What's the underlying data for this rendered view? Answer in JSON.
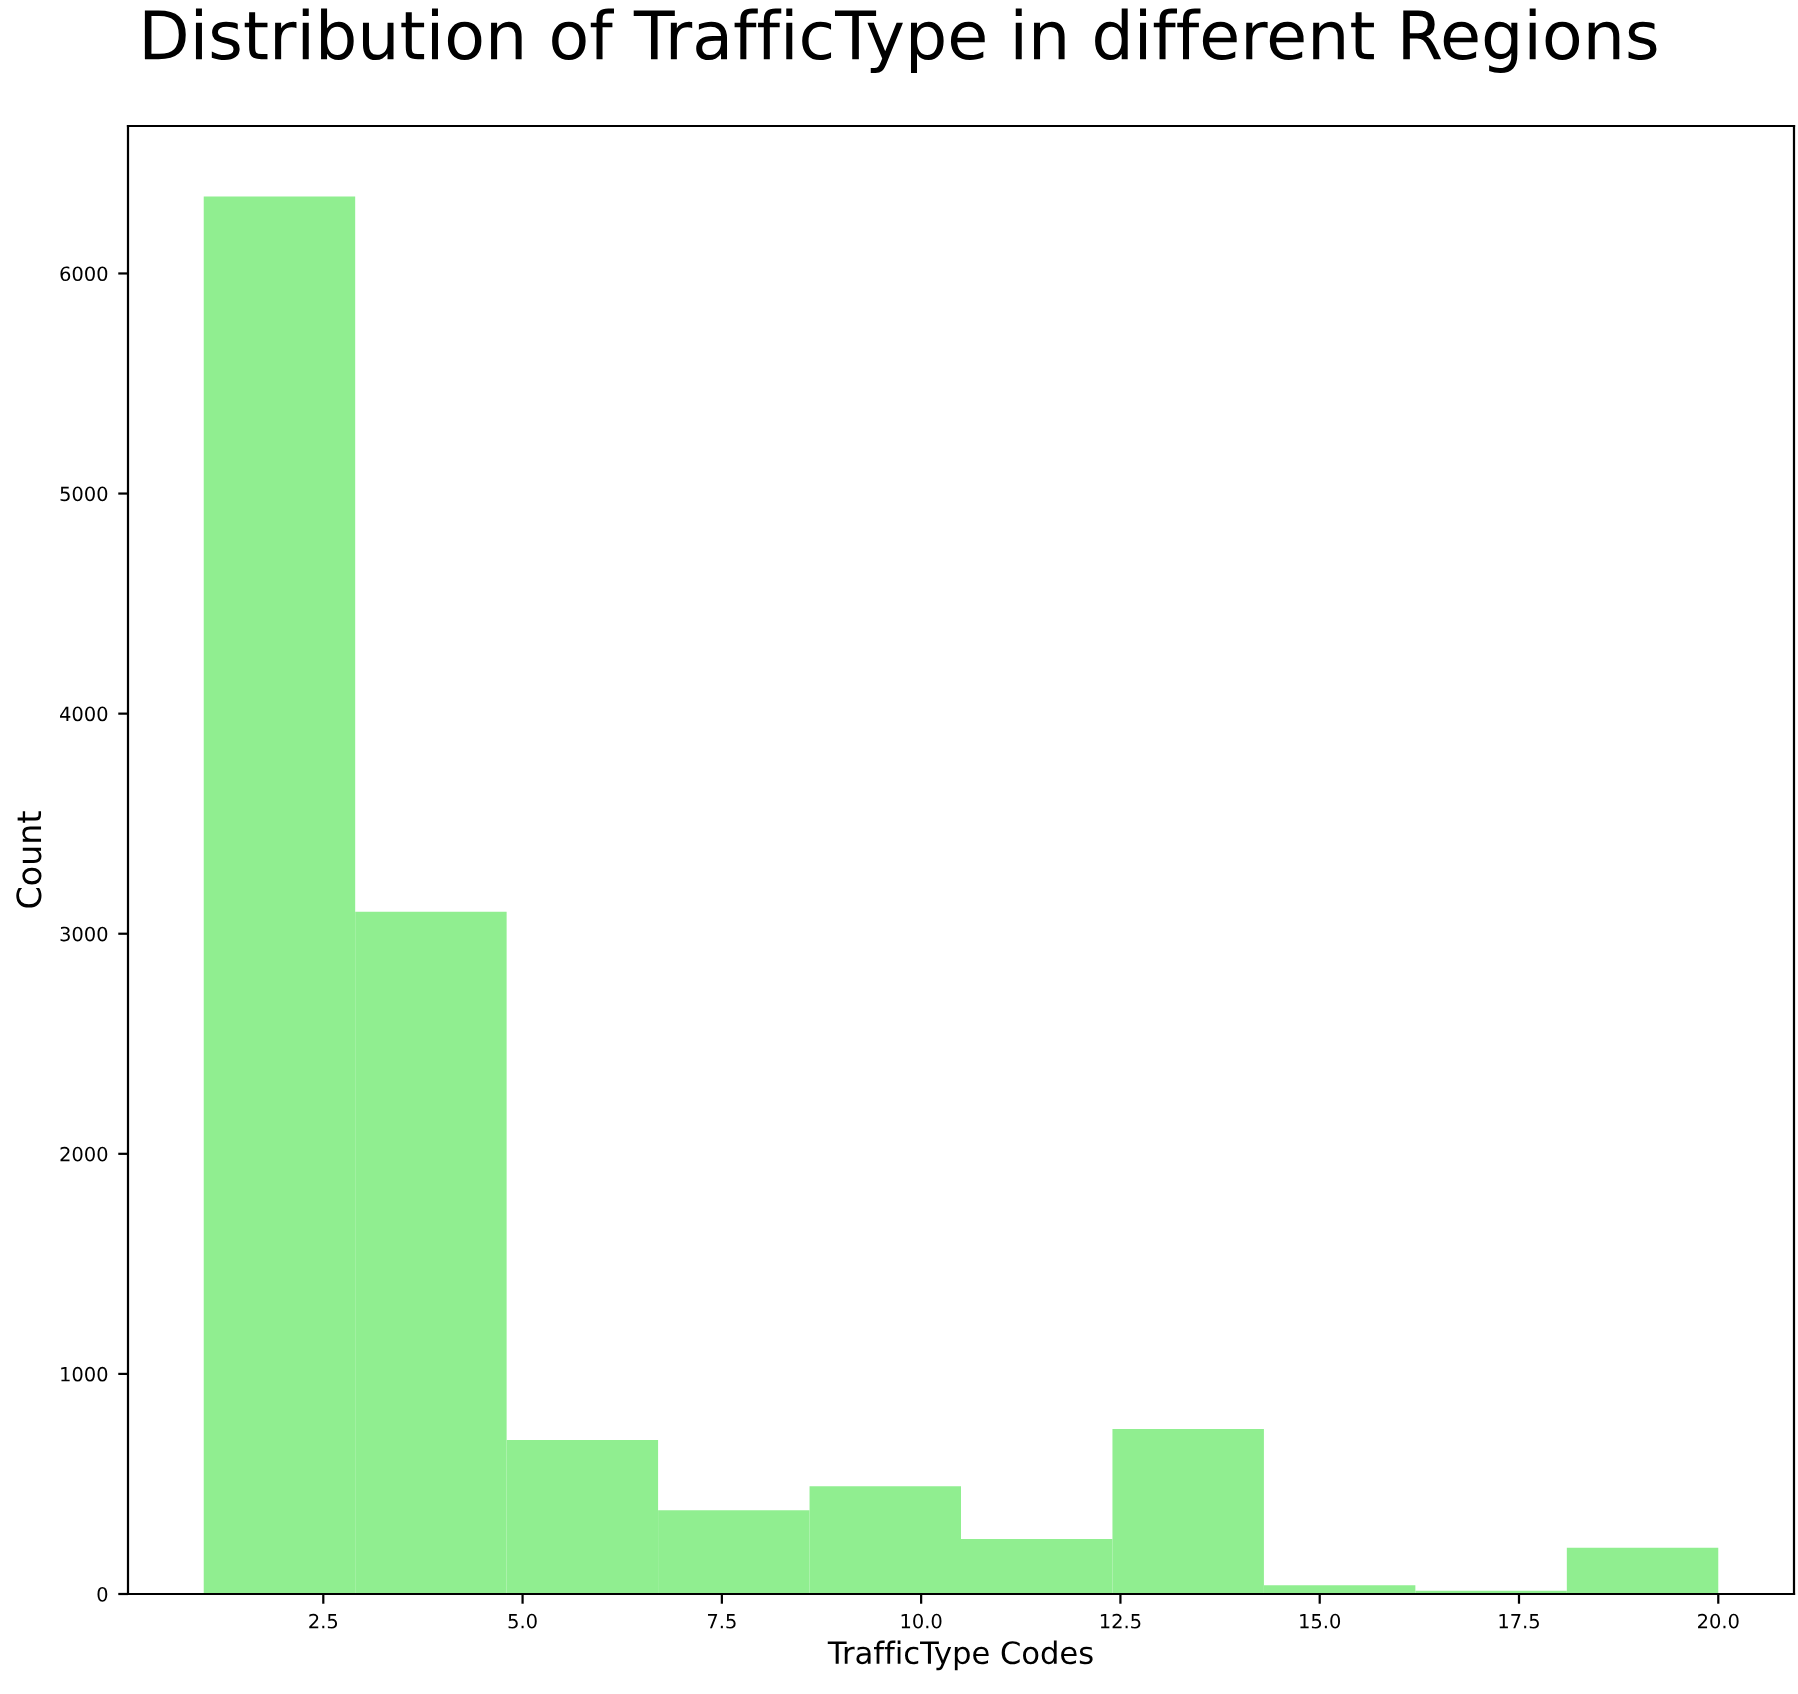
{
  "chart_data": {
    "type": "histogram",
    "title": "Distribution of TrafficType in different Regions",
    "xlabel": "TrafficType Codes",
    "ylabel": "Count",
    "bins": [
      1.0,
      2.9,
      4.8,
      6.7,
      8.6,
      10.5,
      12.4,
      14.3,
      16.2,
      18.1,
      20.0
    ],
    "values": [
      6350,
      3100,
      700,
      380,
      490,
      250,
      750,
      40,
      15,
      210
    ],
    "color": "#90ee90",
    "xlim": [
      0.05,
      20.95
    ],
    "xticks": [
      {
        "value": 2.5,
        "label": "2.5"
      },
      {
        "value": 5.0,
        "label": "5.0"
      },
      {
        "value": 7.5,
        "label": "7.5"
      },
      {
        "value": 10.0,
        "label": "10.0"
      },
      {
        "value": 12.5,
        "label": "12.5"
      },
      {
        "value": 15.0,
        "label": "15.0"
      },
      {
        "value": 17.5,
        "label": "17.5"
      },
      {
        "value": 20.0,
        "label": "20.0"
      }
    ],
    "ylim": [
      0,
      6670
    ],
    "yticks": [
      0,
      1000,
      2000,
      3000,
      4000,
      5000,
      6000
    ],
    "grid": false
  }
}
